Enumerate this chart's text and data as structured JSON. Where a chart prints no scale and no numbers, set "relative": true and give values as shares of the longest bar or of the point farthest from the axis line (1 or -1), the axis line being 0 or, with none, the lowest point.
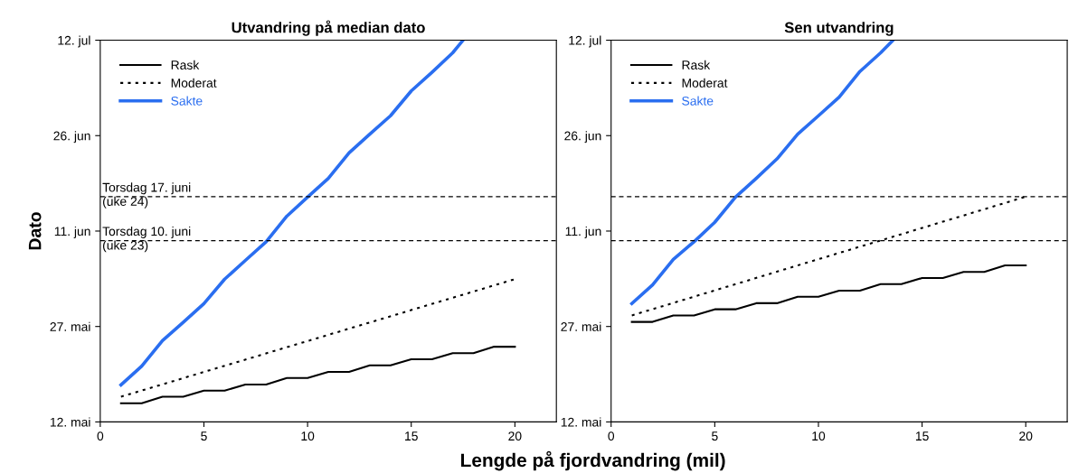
{
  "chart_data": [
    {
      "type": "line",
      "title": "Utvandring på median dato",
      "xlabel": "Lengde på fjordvandring (mil)",
      "ylabel": "Dato",
      "relative": true,
      "xlim": [
        0,
        22
      ],
      "xticks": [
        0,
        5,
        10,
        15,
        20
      ],
      "annotations": [
        "12. mai",
        "27. mai",
        "11. jun",
        "26. jun",
        "12. jul"
      ],
      "legend": "top left",
      "grid": false,
      "marker": "none",
      "series": [
        {
          "name": "Rask",
          "color": "#000000",
          "line_style": "solid",
          "x": [
            1,
            2,
            3,
            4,
            5,
            6,
            7,
            8,
            9,
            10,
            11,
            12,
            13,
            14,
            15,
            16,
            17,
            18,
            19,
            20
          ],
          "values": [
            0.049,
            0.049,
            0.066,
            0.066,
            0.082,
            0.082,
            0.098,
            0.098,
            0.115,
            0.115,
            0.131,
            0.131,
            0.148,
            0.148,
            0.164,
            0.164,
            0.18,
            0.18,
            0.197,
            0.197
          ]
        },
        {
          "name": "Moderat",
          "color": "#000000",
          "line_style": "dotted",
          "x": [
            1,
            20
          ],
          "values": [
            0.066,
            0.374
          ]
        },
        {
          "name": "Sakte",
          "color": "#2a6ef0",
          "line_style": "solid",
          "x": [
            1,
            2,
            3,
            4,
            5,
            6,
            7,
            8,
            9,
            10,
            11,
            12,
            13,
            14,
            15,
            16,
            17,
            17.5
          ],
          "values": [
            0.097,
            0.146,
            0.213,
            0.261,
            0.31,
            0.374,
            0.423,
            0.472,
            0.539,
            0.589,
            0.638,
            0.705,
            0.754,
            0.802,
            0.867,
            0.916,
            0.967,
            1
          ]
        }
      ],
      "ref_lines": [
        {
          "axis": "y",
          "value": 0.59,
          "label": "Torsdag 17. juni\n(uke 24)",
          "color": "#000000",
          "line_style": "dashed"
        },
        {
          "axis": "y",
          "value": 0.475,
          "label": "Torsdag 10. juni\n(uke 23)",
          "color": "#000000",
          "line_style": "dashed"
        }
      ]
    },
    {
      "type": "line",
      "title": "Sen utvandring",
      "relative": true,
      "xlim": [
        0,
        22
      ],
      "xticks": [
        0,
        5,
        10,
        15,
        20
      ],
      "annotations": [
        "12. mai",
        "27. mai",
        "11. jun",
        "26. jun",
        "12. jul"
      ],
      "legend": "top left",
      "grid": false,
      "marker": "none",
      "series": [
        {
          "name": "Rask",
          "color": "#000000",
          "line_style": "solid",
          "x": [
            1,
            2,
            3,
            4,
            5,
            6,
            7,
            8,
            9,
            10,
            11,
            12,
            13,
            14,
            15,
            16,
            17,
            18,
            19,
            20
          ],
          "values": [
            0.262,
            0.262,
            0.279,
            0.279,
            0.295,
            0.295,
            0.311,
            0.311,
            0.328,
            0.328,
            0.344,
            0.344,
            0.361,
            0.361,
            0.377,
            0.377,
            0.393,
            0.393,
            0.41,
            0.41
          ]
        },
        {
          "name": "Moderat",
          "color": "#000000",
          "line_style": "dotted",
          "x": [
            1,
            20
          ],
          "values": [
            0.279,
            0.59
          ]
        },
        {
          "name": "Sakte",
          "color": "#2a6ef0",
          "line_style": "solid",
          "x": [
            1,
            2,
            3,
            4,
            5,
            6,
            7,
            8,
            9,
            10,
            11,
            12,
            13,
            13.6
          ],
          "values": [
            0.31,
            0.359,
            0.426,
            0.472,
            0.523,
            0.589,
            0.638,
            0.689,
            0.754,
            0.802,
            0.851,
            0.918,
            0.967,
            1
          ]
        }
      ],
      "ref_lines": [
        {
          "axis": "y",
          "value": 0.59,
          "color": "#000000",
          "line_style": "dashed"
        },
        {
          "axis": "y",
          "value": 0.475,
          "color": "#000000",
          "line_style": "dashed"
        }
      ]
    }
  ]
}
